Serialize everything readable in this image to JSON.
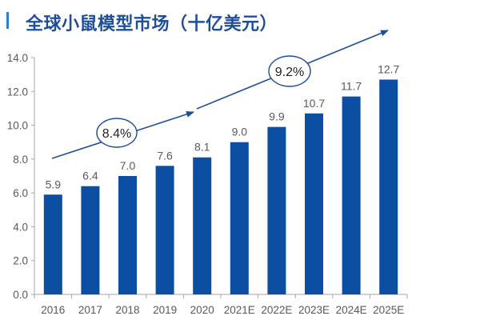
{
  "chart_data": {
    "type": "bar",
    "title": "全球小鼠模型市场（十亿美元）",
    "categories": [
      "2016",
      "2017",
      "2018",
      "2019",
      "2020",
      "2021E",
      "2022E",
      "2023E",
      "2024E",
      "2025E"
    ],
    "values": [
      5.9,
      6.4,
      7.0,
      7.6,
      8.1,
      9.0,
      9.9,
      10.7,
      11.7,
      12.7
    ],
    "value_labels": [
      "5.9",
      "6.4",
      "7.0",
      "7.6",
      "8.1",
      "9.0",
      "9.9",
      "10.7",
      "11.7",
      "12.7"
    ],
    "ylim": [
      0,
      14
    ],
    "yticks": [
      "0.0",
      "2.0",
      "4.0",
      "6.0",
      "8.0",
      "10.0",
      "12.0",
      "14.0"
    ],
    "grid": false,
    "bar_color": "#0b4ea2",
    "annotations": [
      {
        "text": "8.4%",
        "from": "2016",
        "to": "2020"
      },
      {
        "text": "9.2%",
        "from": "2020",
        "to": "2025E"
      }
    ]
  }
}
